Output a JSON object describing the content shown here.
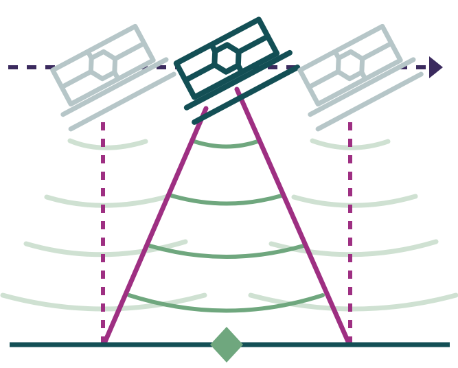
{
  "diagram": {
    "kind": "satellite-radar-imaging",
    "satellites": [
      {
        "name": "satellite-left",
        "state": "past-position"
      },
      {
        "name": "satellite-center",
        "state": "current-position"
      },
      {
        "name": "satellite-right",
        "state": "future-position"
      }
    ],
    "flight_path": {
      "style": "dashed",
      "direction": "right"
    },
    "target": {
      "shape": "diamond"
    },
    "colors": {
      "satellite_active": "#134f55",
      "satellite_faded": "#b6c6c8",
      "flight_path": "#3b2a5e",
      "beam": "#9e2f82",
      "pulse_active": "#6fa77e",
      "pulse_faded": "#cfe1d2",
      "ground": "#134f55",
      "target": "#6fa77e",
      "background": "#ffffff"
    }
  }
}
